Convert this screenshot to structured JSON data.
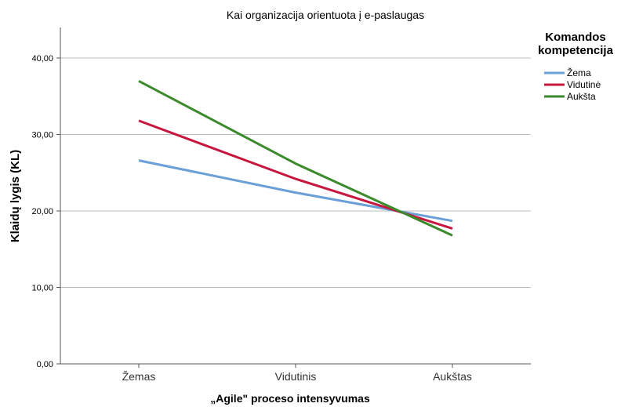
{
  "chart_data": {
    "type": "line",
    "title": "Kai organizacija orientuota į e-paslaugas",
    "xlabel": "„Agile\" proceso intensyvumas",
    "ylabel": "Klaidų lygis (KL)",
    "categories": [
      "Žemas",
      "Vidutinis",
      "Aukštas"
    ],
    "ylim": [
      0,
      44
    ],
    "yticks": [
      "0,00",
      "10,00",
      "20,00",
      "30,00",
      "40,00"
    ],
    "ytick_values": [
      0,
      10,
      20,
      30,
      40
    ],
    "grid": true,
    "legend": {
      "title": "Komandos kompetencija",
      "placement": "top-right"
    },
    "series": [
      {
        "name": "Žema",
        "values": [
          26.6,
          22.4,
          18.7
        ],
        "color": "#6a9fd8"
      },
      {
        "name": "Vidutinė",
        "values": [
          31.8,
          24.2,
          17.7
        ],
        "color": "#c8173f"
      },
      {
        "name": "Aukšta",
        "values": [
          37.0,
          26.2,
          16.8
        ],
        "color": "#3b8a2c"
      }
    ]
  }
}
